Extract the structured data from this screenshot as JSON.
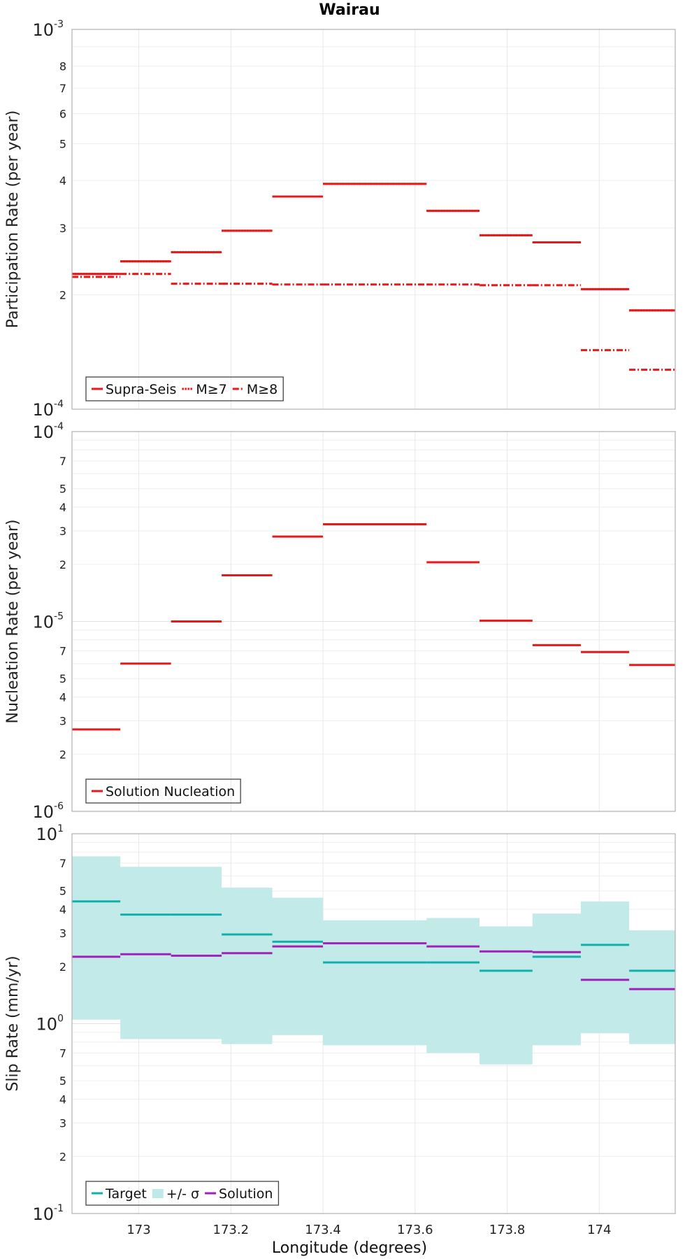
{
  "chart_data": {
    "type": "line",
    "title": "Wairau",
    "xlabel": "Longitude (degrees)",
    "xlim": [
      172.855,
      174.165
    ],
    "x_ticks": [
      {
        "value": 173,
        "label": "173"
      },
      {
        "value": 173.2,
        "label": "173.2"
      },
      {
        "value": 173.4,
        "label": "173.4"
      },
      {
        "value": 173.6,
        "label": "173.6"
      },
      {
        "value": 173.8,
        "label": "173.8"
      },
      {
        "value": 174,
        "label": "174"
      }
    ],
    "bins": [
      [
        172.855,
        172.96
      ],
      [
        172.96,
        173.07
      ],
      [
        173.07,
        173.18
      ],
      [
        173.18,
        173.29
      ],
      [
        173.29,
        173.4
      ],
      [
        173.4,
        173.625
      ],
      [
        173.625,
        173.74
      ],
      [
        173.74,
        173.855
      ],
      [
        173.855,
        173.96
      ],
      [
        173.96,
        174.065
      ],
      [
        174.065,
        174.165
      ]
    ],
    "panels": [
      {
        "ylabel": "Participation Rate (per year)",
        "yscale": "log",
        "ylim": [
          0.0001,
          0.001
        ],
        "y_tick_labels": [
          {
            "value": 0.001,
            "base": "10",
            "exp": "-3"
          },
          {
            "value": 0.0008,
            "label": "8"
          },
          {
            "value": 0.0007,
            "label": "7"
          },
          {
            "value": 0.0006,
            "label": "6"
          },
          {
            "value": 0.0005,
            "label": "5"
          },
          {
            "value": 0.0004,
            "label": "4"
          },
          {
            "value": 0.0003,
            "label": "3"
          },
          {
            "value": 0.0002,
            "label": "2"
          },
          {
            "value": 0.0001,
            "base": "10",
            "exp": "-4"
          }
        ],
        "series": [
          {
            "name": "Supra-Seis",
            "style": "solid",
            "color": "#e8191b",
            "values": [
              0.000227,
              0.000245,
              0.000259,
              0.000295,
              0.000363,
              0.000392,
              0.000333,
              0.000287,
              0.000275,
              0.000207,
              0.000182
            ]
          },
          {
            "name": "M≥7",
            "style": "dotted",
            "color": "#e8191b",
            "values": [
              0.000227,
              0.000245,
              0.000259,
              0.000295,
              0.000363,
              0.000392,
              0.000333,
              0.000287,
              0.000275,
              0.000207,
              0.000182
            ]
          },
          {
            "name": "M≥8",
            "style": "dashdot",
            "color": "#e8191b",
            "values": [
              0.000223,
              0.000227,
              0.000214,
              0.000214,
              0.000213,
              0.000213,
              0.000213,
              0.000212,
              0.000212,
              0.000143,
              0.000127
            ]
          }
        ],
        "legend": [
          {
            "label": "Supra-Seis",
            "style": "solid",
            "color": "#e8191b"
          },
          {
            "label": "M≥7",
            "style": "dotted",
            "color": "#e8191b"
          },
          {
            "label": "M≥8",
            "style": "dashdot",
            "color": "#e8191b"
          }
        ]
      },
      {
        "ylabel": "Nucleation Rate (per year)",
        "yscale": "log",
        "ylim": [
          1e-06,
          0.0001
        ],
        "y_tick_labels": [
          {
            "value": 0.0001,
            "base": "10",
            "exp": "-4"
          },
          {
            "value": 7e-05,
            "label": "7"
          },
          {
            "value": 5e-05,
            "label": "5"
          },
          {
            "value": 4e-05,
            "label": "4"
          },
          {
            "value": 3e-05,
            "label": "3"
          },
          {
            "value": 2e-05,
            "label": "2"
          },
          {
            "value": 1e-05,
            "base": "10",
            "exp": "-5"
          },
          {
            "value": 7e-06,
            "label": "7"
          },
          {
            "value": 5e-06,
            "label": "5"
          },
          {
            "value": 4e-06,
            "label": "4"
          },
          {
            "value": 3e-06,
            "label": "3"
          },
          {
            "value": 2e-06,
            "label": "2"
          },
          {
            "value": 1e-06,
            "base": "10",
            "exp": "-6"
          }
        ],
        "series": [
          {
            "name": "Solution Nucleation",
            "style": "solid",
            "color": "#e8191b",
            "values": [
              2.7e-06,
              6e-06,
              1e-05,
              1.75e-05,
              2.8e-05,
              3.25e-05,
              2.05e-05,
              1.01e-05,
              7.5e-06,
              6.9e-06,
              5.9e-06
            ]
          }
        ],
        "legend": [
          {
            "label": "Solution Nucleation",
            "style": "solid",
            "color": "#e8191b"
          }
        ]
      },
      {
        "ylabel": "Slip Rate (mm/yr)",
        "yscale": "log",
        "ylim": [
          0.1,
          10
        ],
        "y_tick_labels": [
          {
            "value": 10,
            "base": "10",
            "exp": "1"
          },
          {
            "value": 7,
            "label": "7"
          },
          {
            "value": 5,
            "label": "5"
          },
          {
            "value": 4,
            "label": "4"
          },
          {
            "value": 3,
            "label": "3"
          },
          {
            "value": 2,
            "label": "2"
          },
          {
            "value": 1,
            "base": "10",
            "exp": "0"
          },
          {
            "value": 0.7,
            "label": "7"
          },
          {
            "value": 0.5,
            "label": "5"
          },
          {
            "value": 0.4,
            "label": "4"
          },
          {
            "value": 0.3,
            "label": "3"
          },
          {
            "value": 0.2,
            "label": "2"
          },
          {
            "value": 0.1,
            "base": "10",
            "exp": "-1"
          }
        ],
        "band": {
          "name": "+/- σ",
          "color": "#bfe9e8",
          "lower": [
            1.05,
            0.83,
            0.83,
            0.78,
            0.87,
            0.77,
            0.7,
            0.61,
            0.77,
            0.89,
            0.78
          ],
          "upper": [
            7.6,
            6.7,
            6.7,
            5.2,
            4.6,
            3.5,
            3.6,
            3.25,
            3.8,
            4.4,
            3.1
          ]
        },
        "series": [
          {
            "name": "Target",
            "style": "solid",
            "color": "#12b0ad",
            "values": [
              4.4,
              3.75,
              3.75,
              2.95,
              2.7,
              2.1,
              2.1,
              1.9,
              2.25,
              2.6,
              1.9
            ]
          },
          {
            "name": "Solution",
            "style": "solid",
            "color": "#a020b8",
            "values": [
              2.25,
              2.32,
              2.28,
              2.35,
              2.55,
              2.65,
              2.55,
              2.4,
              2.38,
              1.7,
              1.52
            ]
          }
        ],
        "legend": [
          {
            "label": "Target",
            "style": "solid",
            "color": "#12b0ad"
          },
          {
            "label": "+/- σ",
            "style": "patch",
            "color": "#bfe9e8"
          },
          {
            "label": "Solution",
            "style": "solid",
            "color": "#a020b8"
          }
        ]
      }
    ]
  }
}
